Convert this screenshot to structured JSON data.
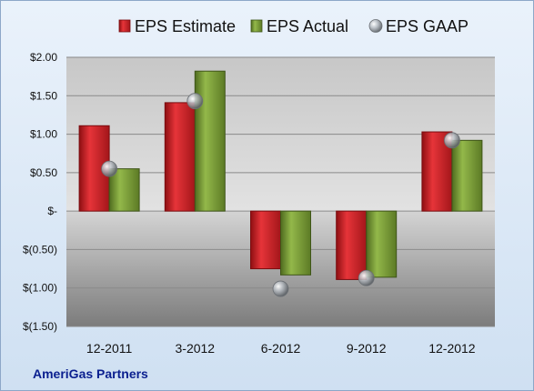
{
  "chart_data": {
    "type": "bar",
    "title": "",
    "xlabel": "",
    "ylabel": "",
    "categories": [
      "12-2011",
      "3-2012",
      "6-2012",
      "9-2012",
      "12-2012"
    ],
    "series": [
      {
        "name": "EPS Estimate",
        "type": "bar",
        "color": "#cc1f24",
        "values": [
          1.11,
          1.41,
          -0.75,
          -0.89,
          1.03
        ]
      },
      {
        "name": "EPS Actual",
        "type": "bar",
        "color": "#7fa23a",
        "values": [
          0.55,
          1.82,
          -0.83,
          -0.86,
          0.92
        ]
      },
      {
        "name": "EPS GAAP",
        "type": "scatter",
        "color": "#a9afb6",
        "values": [
          0.55,
          1.43,
          -1.01,
          -0.87,
          0.92
        ]
      }
    ],
    "ylim": [
      -1.5,
      2.0
    ],
    "yticks": [
      2.0,
      1.5,
      1.0,
      0.5,
      0,
      -0.5,
      -1.0,
      -1.5
    ],
    "ytick_labels": [
      "$2.00",
      "$1.50",
      "$1.00",
      "$0.50",
      "$-",
      "$(0.50)",
      "$(1.00)",
      "$(1.50)"
    ],
    "grid": true,
    "legend_position": "top"
  },
  "footer": {
    "company": "AmeriGas Partners"
  }
}
